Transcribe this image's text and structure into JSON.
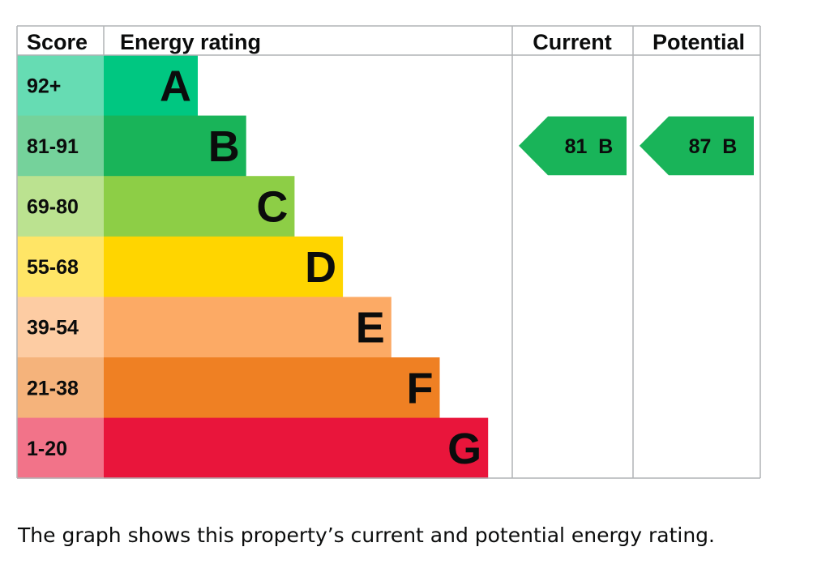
{
  "chart_data": {
    "type": "bar",
    "headers": {
      "score": "Score",
      "rating": "Energy rating",
      "current": "Current",
      "potential": "Potential"
    },
    "bands": [
      {
        "letter": "A",
        "range": "92+",
        "color": "#00c781",
        "score_bg": "#66dcb3"
      },
      {
        "letter": "B",
        "range": "81-91",
        "color": "#19b459",
        "score_bg": "#75d29b"
      },
      {
        "letter": "C",
        "range": "69-80",
        "color": "#8dce46",
        "score_bg": "#bbe290"
      },
      {
        "letter": "D",
        "range": "55-68",
        "color": "#ffd500",
        "score_bg": "#ffe566"
      },
      {
        "letter": "E",
        "range": "39-54",
        "color": "#fcaa65",
        "score_bg": "#fdcca3"
      },
      {
        "letter": "F",
        "range": "21-38",
        "color": "#ef8023",
        "score_bg": "#f5b37b"
      },
      {
        "letter": "G",
        "range": "1-20",
        "color": "#e9153b",
        "score_bg": "#f27389"
      }
    ],
    "current": {
      "value": 81,
      "band": "B",
      "label": "81  B"
    },
    "potential": {
      "value": 87,
      "band": "B",
      "label": "87  B"
    }
  },
  "caption": "The graph shows this property’s current and potential energy rating."
}
